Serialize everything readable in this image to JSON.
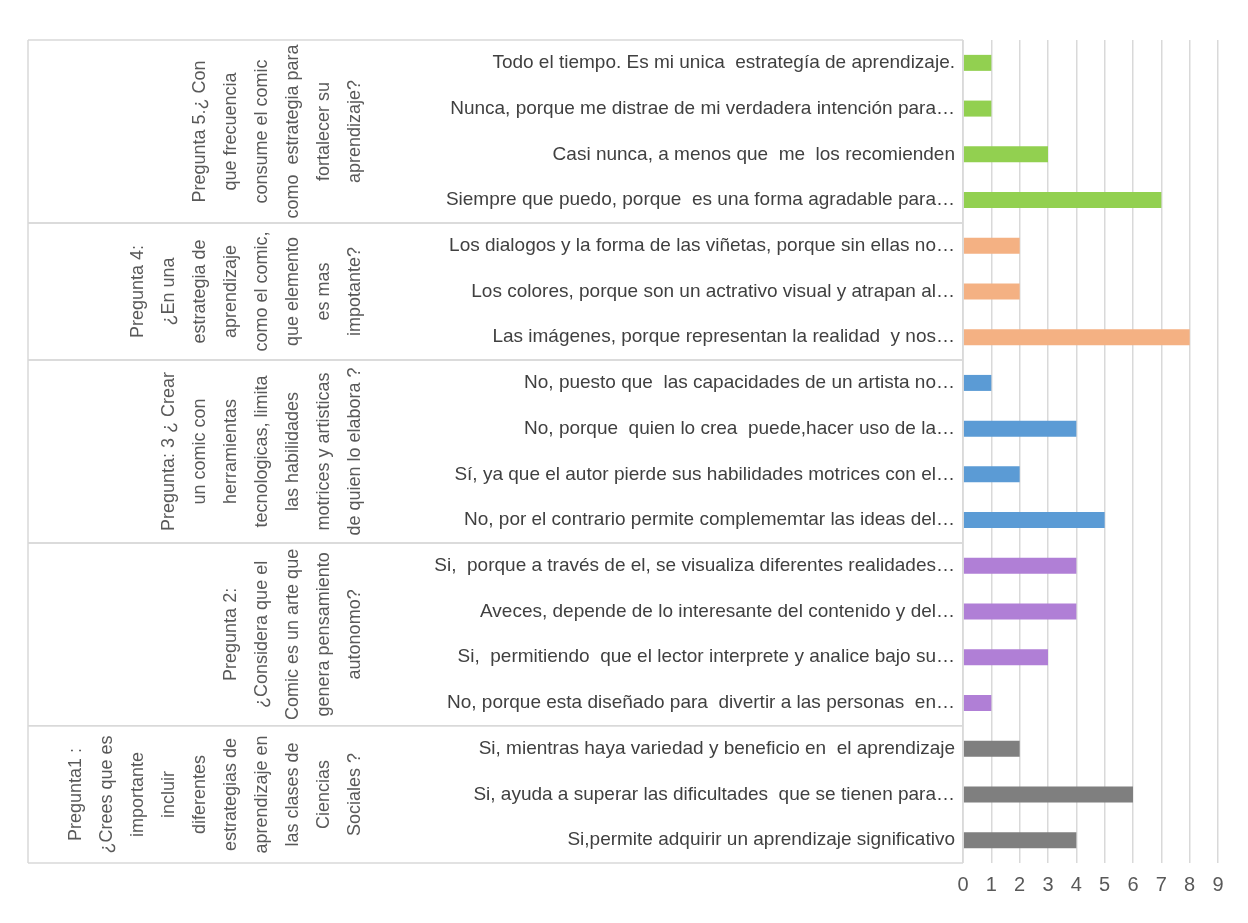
{
  "chart_data": {
    "type": "bar",
    "orientation": "horizontal",
    "stacked": true,
    "grid": "x",
    "legend": false,
    "categories": [
      "Todo el tiempo. Es mi unica  estrategía de aprendizaje.",
      "Nunca, porque me distrae de mi verdadera intención para…",
      "Casi nunca, a menos que  me  los recomienden",
      "Siempre que puedo, porque  es una forma agradable para…",
      "Los dialogos y la forma de las viñetas, porque sin ellas no…",
      "Los colores, porque son un actrativo visual y atrapan al…",
      "Las imágenes, porque representan la realidad  y nos…",
      "No, puesto que  las capacidades de un artista no…",
      "No, porque  quien lo crea  puede,hacer uso de la…",
      "Sí, ya que el autor pierde sus habilidades motrices con el…",
      "No, por el contrario permite complememtar las ideas del…",
      "Si,  porque a través de el, se visualiza diferentes realidades…",
      "Aveces, depende de lo interesante del contenido y del…",
      "Si,  permitiendo  que el lector interprete y analice bajo su…",
      "No, porque esta diseñado para  divertir a las personas  en…",
      "Si, mientras haya variedad y beneficio en  el aprendizaje",
      "Si, ayuda a superar las dificultades  que se tienen para…",
      "Si,permite adquirir un aprendizaje significativo"
    ],
    "series": [
      {
        "color": "#92d050",
        "values": [
          1,
          1,
          3,
          7,
          null,
          null,
          null,
          null,
          null,
          null,
          null,
          null,
          null,
          null,
          null,
          null,
          null,
          null
        ]
      },
      {
        "color": "#f4b183",
        "values": [
          null,
          null,
          null,
          null,
          2,
          2,
          8,
          null,
          null,
          null,
          null,
          null,
          null,
          null,
          null,
          null,
          null,
          null
        ]
      },
      {
        "color": "#5b9bd5",
        "values": [
          null,
          null,
          null,
          null,
          null,
          null,
          null,
          1,
          4,
          2,
          5,
          null,
          null,
          null,
          null,
          null,
          null,
          null
        ]
      },
      {
        "color": "#b07fd6",
        "values": [
          null,
          null,
          null,
          null,
          null,
          null,
          null,
          null,
          null,
          null,
          null,
          4,
          4,
          3,
          1,
          null,
          null,
          null
        ]
      },
      {
        "color": "#7f7f7f",
        "values": [
          null,
          null,
          null,
          null,
          null,
          null,
          null,
          null,
          null,
          null,
          null,
          null,
          null,
          null,
          null,
          2,
          6,
          4
        ]
      }
    ],
    "annotations": [
      "Pregunta 5.¿ Con que frecuencia consume el comic como  estrategia para fortalecer su aprendizaje?",
      "Pregunta 4: ¿En una estrategia de aprendizaje como el comic, que elemento es mas impotante?",
      "Pregunta: 3 ¿ Crear un comic con herramientas tecnologicas, limita las habilidades motrices y artisticas de quien lo elabora ?",
      "Pregunta 2: ¿Considera que el Comic es un arte que  genera pensamiento autonomo?",
      "Pregunta1 : ¿Crees que es importante incluir diferentes estrategias de aprendizaje en las clases de Ciencias Sociales ?"
    ],
    "xlim": [
      0,
      9
    ],
    "xticks": [
      0,
      1,
      2,
      3,
      4,
      5,
      6,
      7,
      8,
      9
    ]
  }
}
